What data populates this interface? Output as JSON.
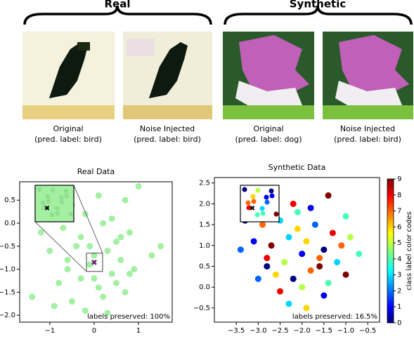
{
  "figure": {
    "groups": [
      "Real",
      "Synthetic"
    ],
    "captions": [
      [
        "Original",
        "(pred. label:  bird)"
      ],
      [
        "Noise Injected",
        "(pred. label:  bird)"
      ],
      [
        "Original",
        "(pred. label:  dog)"
      ],
      [
        "Noise Injected",
        "(pred. label:  bird)"
      ]
    ]
  },
  "chart_data": [
    {
      "type": "scatter",
      "title": "Real Data",
      "annotation": "labels preserved: 100%",
      "color": "#a3f0a3",
      "x": [
        -0.9,
        -0.5,
        -0.2,
        0.1,
        0.4,
        0.7,
        1.0,
        -1.2,
        -0.7,
        -0.3,
        0.2,
        0.5,
        0.8,
        -1.0,
        -0.4,
        0.0,
        0.3,
        0.6,
        -0.6,
        -0.1,
        0.4,
        0.9,
        -0.8,
        -0.3,
        0.1,
        0.5,
        1.3,
        -1.4,
        -0.5,
        0.2,
        0.7,
        -0.2,
        0.3,
        -0.9,
        0.0,
        1.5,
        -0.6,
        0.6,
        -0.1,
        0.8
      ],
      "values": [
        0.3,
        0.4,
        0.2,
        0.6,
        0.1,
        0.5,
        0.8,
        -0.2,
        -0.1,
        -0.3,
        0.0,
        -0.4,
        -0.2,
        -0.6,
        -0.5,
        -0.7,
        -0.6,
        -0.8,
        -1.0,
        -0.9,
        -1.1,
        -1.0,
        -1.3,
        -1.2,
        -1.4,
        -1.3,
        -0.7,
        -1.6,
        -1.7,
        -1.6,
        -1.5,
        -1.9,
        -1.95,
        -1.8,
        -1.2,
        -0.5,
        -0.8,
        -0.3,
        -0.5,
        -1.1
      ],
      "marker": {
        "x": 0,
        "y": -0.85,
        "color": "#6b1d6b"
      },
      "xlim": [
        -1.68,
        1.76
      ],
      "ylim": [
        -2.15,
        0.9
      ],
      "xticks": [
        {
          "value": -1,
          "label": "−1"
        },
        0,
        1
      ],
      "yticks": [
        0.5,
        {
          "value": 0,
          "label": "0.0"
        },
        {
          "value": -0.5,
          "label": "−0.5"
        },
        {
          "value": -1,
          "label": "−1.0"
        },
        {
          "value": -1.5,
          "label": "−1.5"
        },
        {
          "value": -2,
          "label": "−2.0"
        }
      ]
    },
    {
      "type": "scatter",
      "title": "Synthetic Data",
      "annotation": "labels preserved: 16.5%",
      "colormap": "jet",
      "x": [
        -3.0,
        -2.6,
        -2.2,
        -1.8,
        -1.4,
        -1.0,
        -3.3,
        -2.9,
        -2.5,
        -2.1,
        -1.7,
        -1.3,
        -0.9,
        -3.1,
        -2.7,
        -2.3,
        -1.9,
        -1.5,
        -1.1,
        -0.7,
        -3.4,
        -2.8,
        -2.4,
        -2.0,
        -1.6,
        -1.2,
        -2.6,
        -2.2,
        -1.8,
        -1.4,
        -3.0,
        -2.5,
        -2.0,
        -1.5,
        -1.0,
        -2.3,
        -1.9,
        -2.8,
        -1.6,
        -2.1
      ],
      "values": [
        2.3,
        2.1,
        2.0,
        1.9,
        2.2,
        1.7,
        1.6,
        1.5,
        1.6,
        1.4,
        1.5,
        1.3,
        1.2,
        1.1,
        1.0,
        1.2,
        1.1,
        0.9,
        1.0,
        0.8,
        0.9,
        0.7,
        0.6,
        0.8,
        0.5,
        0.6,
        0.3,
        0.2,
        0.4,
        0.1,
        0.2,
        -0.1,
        0.0,
        -0.2,
        0.3,
        -0.4,
        -0.5,
        0.5,
        0.7,
        1.8
      ],
      "classes": [
        2,
        5,
        8,
        1,
        9,
        4,
        0,
        7,
        3,
        6,
        2,
        8,
        5,
        1,
        9,
        3,
        6,
        0,
        7,
        4,
        2,
        8,
        5,
        1,
        9,
        3,
        6,
        0,
        7,
        4,
        2,
        8,
        5,
        1,
        9,
        3,
        6,
        0,
        7,
        4
      ],
      "marker": {
        "x": -3.0,
        "y": 2.22,
        "color": "#6b1d6b"
      },
      "xlim": [
        -4.0,
        -0.23
      ],
      "ylim": [
        -0.84,
        2.63
      ],
      "xticks": [
        {
          "value": -3.5,
          "label": "−3.5"
        },
        {
          "value": -3,
          "label": "−3.0"
        },
        {
          "value": -2.5,
          "label": "−2.5"
        },
        {
          "value": -2,
          "label": "−2.0"
        },
        {
          "value": -1.5,
          "label": "−1.5"
        },
        {
          "value": -1,
          "label": "−1.0"
        },
        {
          "value": -0.5,
          "label": "−0.5"
        }
      ],
      "yticks": [
        2.5,
        {
          "value": 2,
          "label": "2.0"
        },
        1.5,
        {
          "value": 1,
          "label": "1.0"
        },
        0.5,
        {
          "value": 0,
          "label": "0.0"
        },
        {
          "value": -0.5,
          "label": "−0.5"
        }
      ],
      "colorbar": {
        "label": "class label color codes",
        "clim": [
          0,
          9
        ],
        "ticks": [
          0,
          1,
          2,
          3,
          4,
          5,
          6,
          7,
          8,
          9
        ]
      }
    }
  ]
}
